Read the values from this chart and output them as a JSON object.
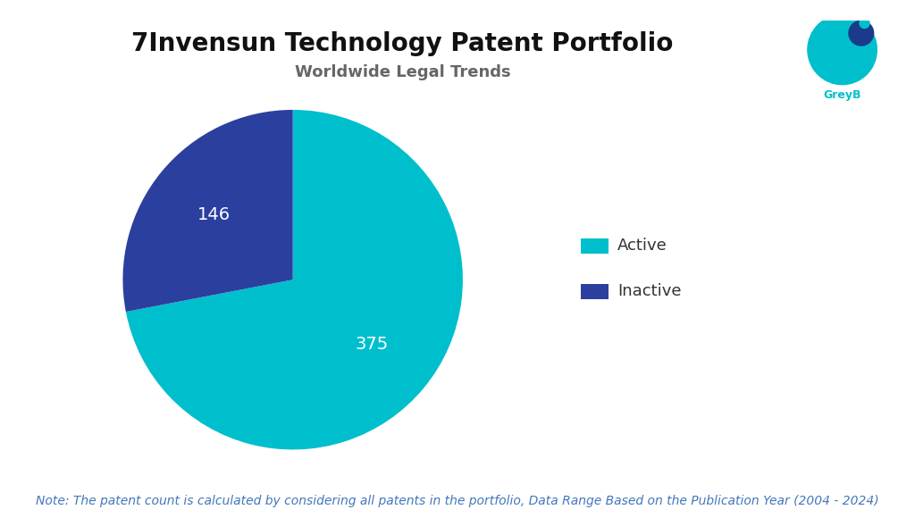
{
  "title": "7Invensun Technology Patent Portfolio",
  "subtitle": "Worldwide Legal Trends",
  "labels": [
    "Active",
    "Inactive"
  ],
  "values": [
    375,
    146
  ],
  "colors": [
    "#00BFCC",
    "#2B3F9E"
  ],
  "label_colors": [
    "white",
    "white"
  ],
  "note": "Note: The patent count is calculated by considering all patents in the portfolio, Data Range Based on the Publication Year (2004 - 2024)",
  "title_fontsize": 20,
  "subtitle_fontsize": 13,
  "note_fontsize": 10,
  "legend_fontsize": 13,
  "value_fontsize": 14,
  "background_color": "#ffffff",
  "title_color": "#111111",
  "subtitle_color": "#666666",
  "note_color": "#4477bb",
  "greyb_color": "#00BFCC"
}
